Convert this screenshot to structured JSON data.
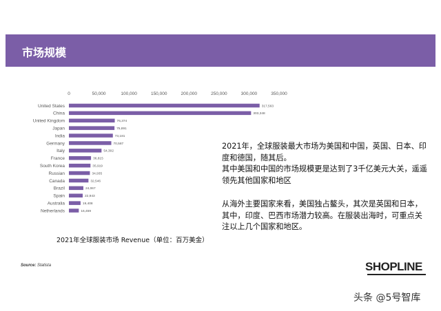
{
  "header": {
    "title": "市场规模"
  },
  "chart_data": {
    "type": "bar",
    "orientation": "horizontal",
    "title": "2021年全球服装市场 Revenue（单位：百万美金）",
    "xlim": [
      0,
      350000
    ],
    "xticks": [
      "0",
      "50,000",
      "100,000",
      "150,000",
      "200,000",
      "250,000",
      "300,000",
      "350,000"
    ],
    "categories": [
      "United States",
      "China",
      "United Kingdom",
      "Japan",
      "India",
      "Germany",
      "Italy",
      "France",
      "South Korea",
      "Russian",
      "Canada",
      "Brazil",
      "Spain",
      "Australia",
      "Netherlands"
    ],
    "values": [
      317563,
      303348,
      76374,
      75891,
      73181,
      70587,
      54302,
      36815,
      35919,
      34935,
      32546,
      24067,
      22943,
      19408,
      16459
    ],
    "value_labels": [
      "317,563",
      "303,348",
      "76,374",
      "75,891",
      "73,181",
      "70,587",
      "54,302",
      "36,815",
      "35,919",
      "34,935",
      "32,546",
      "24,067",
      "22,943",
      "19,408",
      "16,459"
    ],
    "bar_color": "#7b5ea7",
    "grid": false
  },
  "body": {
    "p1": "2021年，全球服装最大市场为美国和中国，英国、日本、印度和德国，随其后。",
    "p2": "其中美国和中国的市场规模更是达到了3千亿美元大关，遥遥领先其他国家和地区",
    "p3": "从海外主要国家来看，美国独占鳌头，其次是英国和日本，其中，印度、巴西市场潜力较高。在服装出海时，可重点关注以上几个国家和地区。"
  },
  "source": {
    "label": "Source:",
    "text": "Statista"
  },
  "logo": {
    "text": "SHOPLINE"
  },
  "watermark": {
    "text": "头条 @5号智库"
  },
  "colors": {
    "accent": "#7b5ea7"
  }
}
